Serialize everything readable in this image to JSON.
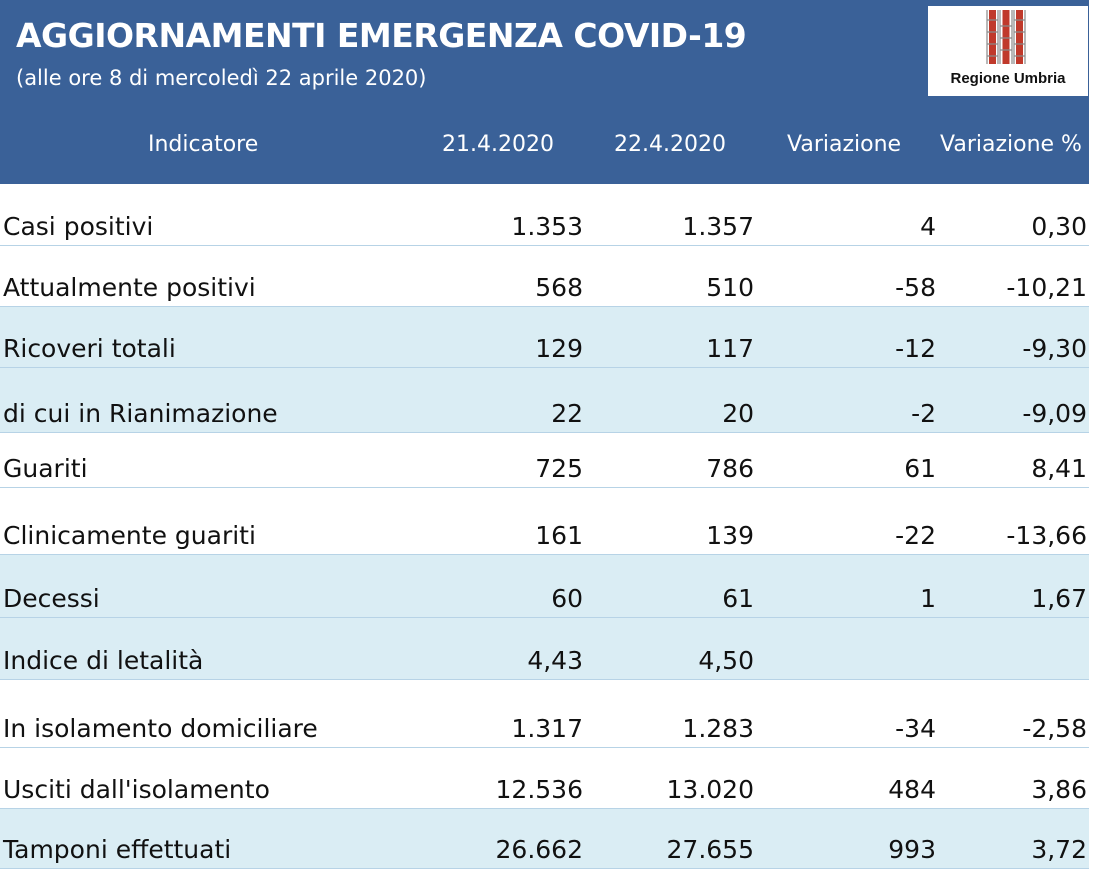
{
  "header": {
    "title": "AGGIORNAMENTI EMERGENZA COVID-19",
    "subtitle": "(alle ore 8 di mercoledì 22 aprile 2020)",
    "background_color": "#3a6198",
    "logo_text": "Regione Umbria"
  },
  "table": {
    "columns": [
      "Indicatore",
      "21.4.2020",
      "22.4.2020",
      "Variazione",
      "Variazione %"
    ],
    "rows": [
      {
        "indicatore": "Casi positivi",
        "d1": "1.353",
        "d2": "1.357",
        "var": "4",
        "var_pct": "0,30",
        "shaded": false
      },
      {
        "indicatore": "Attualmente positivi",
        "d1": "568",
        "d2": "510",
        "var": "-58",
        "var_pct": "-10,21",
        "shaded": false
      },
      {
        "indicatore": "Ricoveri totali",
        "d1": "129",
        "d2": "117",
        "var": "-12",
        "var_pct": "-9,30",
        "shaded": true
      },
      {
        "indicatore": "di cui in Rianimazione",
        "d1": "22",
        "d2": "20",
        "var": "-2",
        "var_pct": "-9,09",
        "shaded": true
      },
      {
        "indicatore": "Guariti",
        "d1": "725",
        "d2": "786",
        "var": "61",
        "var_pct": "8,41",
        "shaded": false
      },
      {
        "indicatore": "Clinicamente guariti",
        "d1": "161",
        "d2": "139",
        "var": "-22",
        "var_pct": "-13,66",
        "shaded": false
      },
      {
        "indicatore": "Decessi",
        "d1": "60",
        "d2": "61",
        "var": "1",
        "var_pct": "1,67",
        "shaded": true
      },
      {
        "indicatore": "Indice di letalità",
        "d1": "4,43",
        "d2": "4,50",
        "var": "",
        "var_pct": "",
        "shaded": true
      },
      {
        "indicatore": "In isolamento domiciliare",
        "d1": "1.317",
        "d2": "1.283",
        "var": "-34",
        "var_pct": "-2,58",
        "shaded": false
      },
      {
        "indicatore": "Usciti dall'isolamento",
        "d1": "12.536",
        "d2": "13.020",
        "var": "484",
        "var_pct": "3,86",
        "shaded": false
      },
      {
        "indicatore": "Tamponi effettuati",
        "d1": "26.662",
        "d2": "27.655",
        "var": "993",
        "var_pct": "3,72",
        "shaded": true
      }
    ],
    "shaded_row_color": "#daedf4"
  }
}
